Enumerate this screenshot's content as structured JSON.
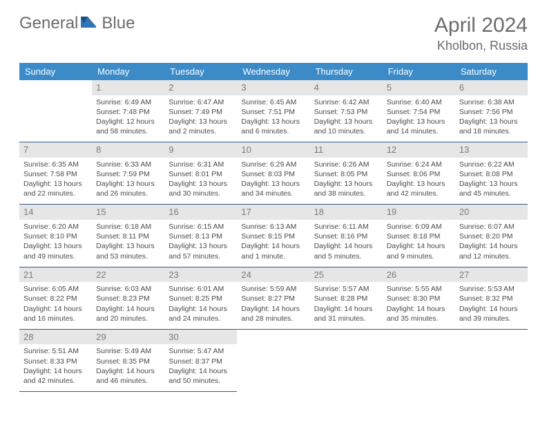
{
  "brand": {
    "part1": "General",
    "part2": "Blue"
  },
  "title": "April 2024",
  "location": "Kholbon, Russia",
  "colors": {
    "header_bg": "#3b8bc9",
    "rule": "#2e5b8a",
    "daynum_bg": "#e6e6e6",
    "text": "#4a4a4a",
    "muted": "#6b6b6b"
  },
  "dow": [
    "Sunday",
    "Monday",
    "Tuesday",
    "Wednesday",
    "Thursday",
    "Friday",
    "Saturday"
  ],
  "weeks": [
    [
      null,
      {
        "n": "1",
        "sr": "Sunrise: 6:49 AM",
        "ss": "Sunset: 7:48 PM",
        "dl": "Daylight: 12 hours and 58 minutes."
      },
      {
        "n": "2",
        "sr": "Sunrise: 6:47 AM",
        "ss": "Sunset: 7:49 PM",
        "dl": "Daylight: 13 hours and 2 minutes."
      },
      {
        "n": "3",
        "sr": "Sunrise: 6:45 AM",
        "ss": "Sunset: 7:51 PM",
        "dl": "Daylight: 13 hours and 6 minutes."
      },
      {
        "n": "4",
        "sr": "Sunrise: 6:42 AM",
        "ss": "Sunset: 7:53 PM",
        "dl": "Daylight: 13 hours and 10 minutes."
      },
      {
        "n": "5",
        "sr": "Sunrise: 6:40 AM",
        "ss": "Sunset: 7:54 PM",
        "dl": "Daylight: 13 hours and 14 minutes."
      },
      {
        "n": "6",
        "sr": "Sunrise: 6:38 AM",
        "ss": "Sunset: 7:56 PM",
        "dl": "Daylight: 13 hours and 18 minutes."
      }
    ],
    [
      {
        "n": "7",
        "sr": "Sunrise: 6:35 AM",
        "ss": "Sunset: 7:58 PM",
        "dl": "Daylight: 13 hours and 22 minutes."
      },
      {
        "n": "8",
        "sr": "Sunrise: 6:33 AM",
        "ss": "Sunset: 7:59 PM",
        "dl": "Daylight: 13 hours and 26 minutes."
      },
      {
        "n": "9",
        "sr": "Sunrise: 6:31 AM",
        "ss": "Sunset: 8:01 PM",
        "dl": "Daylight: 13 hours and 30 minutes."
      },
      {
        "n": "10",
        "sr": "Sunrise: 6:29 AM",
        "ss": "Sunset: 8:03 PM",
        "dl": "Daylight: 13 hours and 34 minutes."
      },
      {
        "n": "11",
        "sr": "Sunrise: 6:26 AM",
        "ss": "Sunset: 8:05 PM",
        "dl": "Daylight: 13 hours and 38 minutes."
      },
      {
        "n": "12",
        "sr": "Sunrise: 6:24 AM",
        "ss": "Sunset: 8:06 PM",
        "dl": "Daylight: 13 hours and 42 minutes."
      },
      {
        "n": "13",
        "sr": "Sunrise: 6:22 AM",
        "ss": "Sunset: 8:08 PM",
        "dl": "Daylight: 13 hours and 45 minutes."
      }
    ],
    [
      {
        "n": "14",
        "sr": "Sunrise: 6:20 AM",
        "ss": "Sunset: 8:10 PM",
        "dl": "Daylight: 13 hours and 49 minutes."
      },
      {
        "n": "15",
        "sr": "Sunrise: 6:18 AM",
        "ss": "Sunset: 8:11 PM",
        "dl": "Daylight: 13 hours and 53 minutes."
      },
      {
        "n": "16",
        "sr": "Sunrise: 6:15 AM",
        "ss": "Sunset: 8:13 PM",
        "dl": "Daylight: 13 hours and 57 minutes."
      },
      {
        "n": "17",
        "sr": "Sunrise: 6:13 AM",
        "ss": "Sunset: 8:15 PM",
        "dl": "Daylight: 14 hours and 1 minute."
      },
      {
        "n": "18",
        "sr": "Sunrise: 6:11 AM",
        "ss": "Sunset: 8:16 PM",
        "dl": "Daylight: 14 hours and 5 minutes."
      },
      {
        "n": "19",
        "sr": "Sunrise: 6:09 AM",
        "ss": "Sunset: 8:18 PM",
        "dl": "Daylight: 14 hours and 9 minutes."
      },
      {
        "n": "20",
        "sr": "Sunrise: 6:07 AM",
        "ss": "Sunset: 8:20 PM",
        "dl": "Daylight: 14 hours and 12 minutes."
      }
    ],
    [
      {
        "n": "21",
        "sr": "Sunrise: 6:05 AM",
        "ss": "Sunset: 8:22 PM",
        "dl": "Daylight: 14 hours and 16 minutes."
      },
      {
        "n": "22",
        "sr": "Sunrise: 6:03 AM",
        "ss": "Sunset: 8:23 PM",
        "dl": "Daylight: 14 hours and 20 minutes."
      },
      {
        "n": "23",
        "sr": "Sunrise: 6:01 AM",
        "ss": "Sunset: 8:25 PM",
        "dl": "Daylight: 14 hours and 24 minutes."
      },
      {
        "n": "24",
        "sr": "Sunrise: 5:59 AM",
        "ss": "Sunset: 8:27 PM",
        "dl": "Daylight: 14 hours and 28 minutes."
      },
      {
        "n": "25",
        "sr": "Sunrise: 5:57 AM",
        "ss": "Sunset: 8:28 PM",
        "dl": "Daylight: 14 hours and 31 minutes."
      },
      {
        "n": "26",
        "sr": "Sunrise: 5:55 AM",
        "ss": "Sunset: 8:30 PM",
        "dl": "Daylight: 14 hours and 35 minutes."
      },
      {
        "n": "27",
        "sr": "Sunrise: 5:53 AM",
        "ss": "Sunset: 8:32 PM",
        "dl": "Daylight: 14 hours and 39 minutes."
      }
    ],
    [
      {
        "n": "28",
        "sr": "Sunrise: 5:51 AM",
        "ss": "Sunset: 8:33 PM",
        "dl": "Daylight: 14 hours and 42 minutes."
      },
      {
        "n": "29",
        "sr": "Sunrise: 5:49 AM",
        "ss": "Sunset: 8:35 PM",
        "dl": "Daylight: 14 hours and 46 minutes."
      },
      {
        "n": "30",
        "sr": "Sunrise: 5:47 AM",
        "ss": "Sunset: 8:37 PM",
        "dl": "Daylight: 14 hours and 50 minutes."
      },
      null,
      null,
      null,
      null
    ]
  ]
}
